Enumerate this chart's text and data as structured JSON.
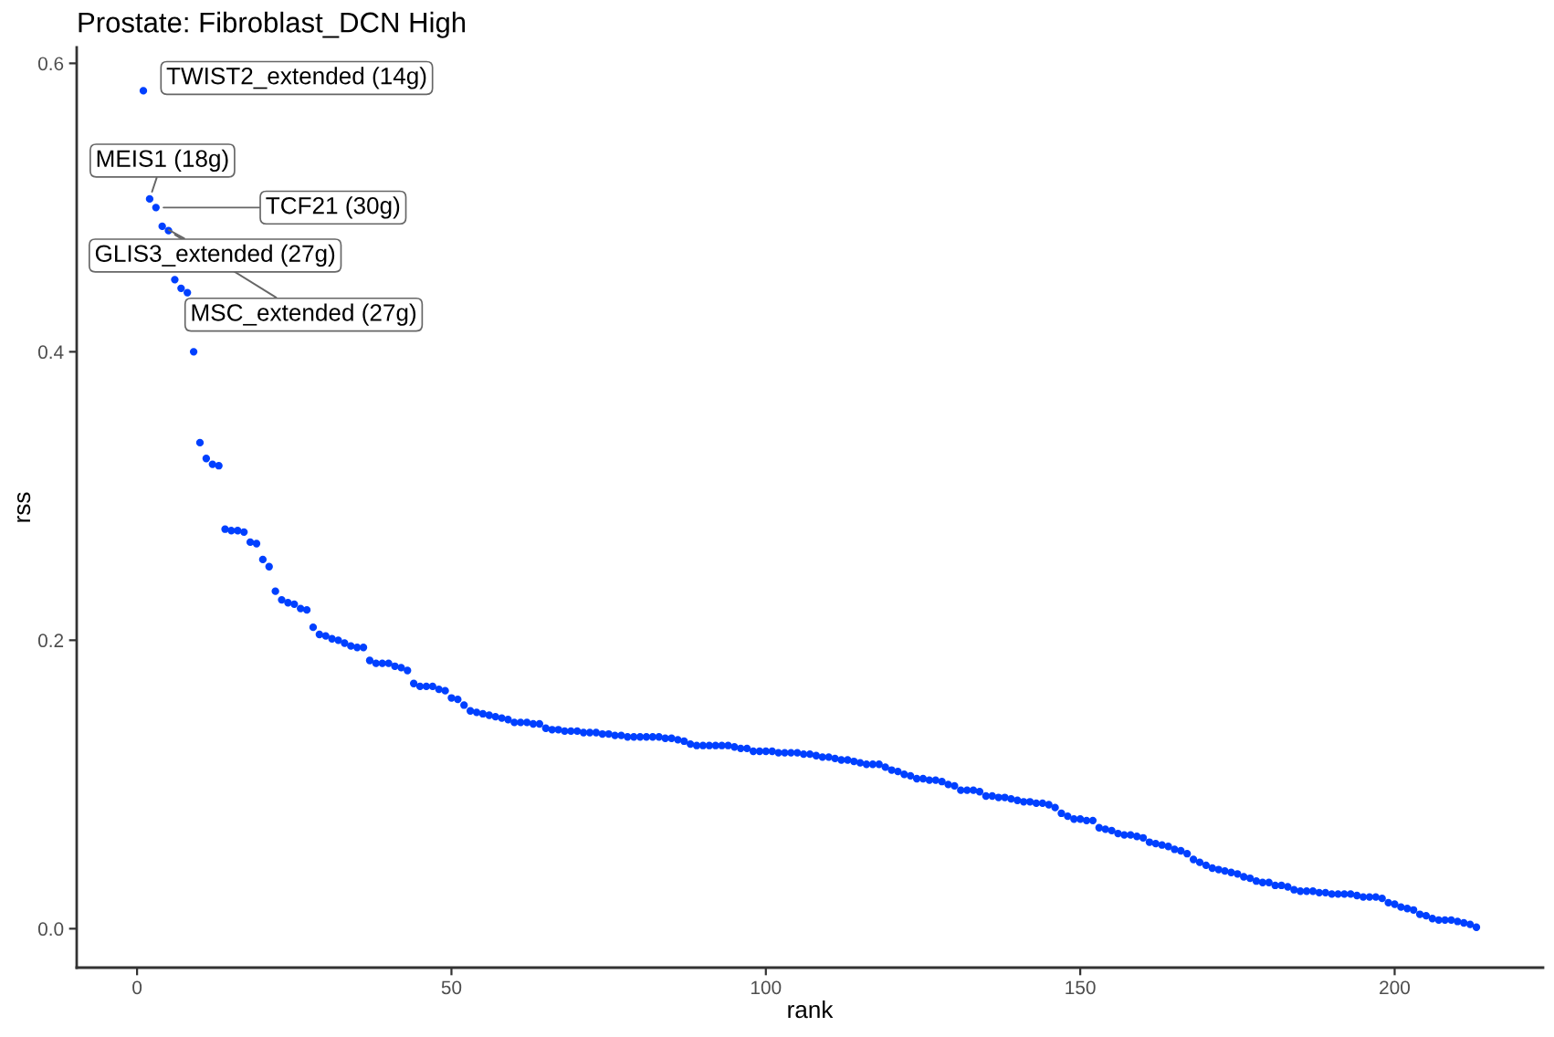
{
  "chart_data": {
    "type": "scatter",
    "title": "Prostate: Fibroblast_DCN High",
    "xlabel": "rank",
    "ylabel": "rss",
    "x": [
      1,
      2,
      3,
      4,
      5,
      6,
      7,
      8,
      9,
      10,
      11,
      12,
      13,
      14,
      15,
      16,
      17,
      18,
      19,
      20,
      21,
      22,
      23,
      24,
      25,
      26,
      27,
      28,
      29,
      30,
      31,
      32,
      33,
      34,
      35,
      36,
      37,
      38,
      39,
      40,
      41,
      42,
      43,
      44,
      45,
      46,
      47,
      48,
      49,
      50,
      51,
      52,
      53,
      54,
      55,
      56,
      57,
      58,
      59,
      60,
      61,
      62,
      63,
      64,
      65,
      66,
      67,
      68,
      69,
      70,
      71,
      72,
      73,
      74,
      75,
      76,
      77,
      78,
      79,
      80,
      81,
      82,
      83,
      84,
      85,
      86,
      87,
      88,
      89,
      90,
      91,
      92,
      93,
      94,
      95,
      96,
      97,
      98,
      99,
      100,
      101,
      102,
      103,
      104,
      105,
      106,
      107,
      108,
      109,
      110,
      111,
      112,
      113,
      114,
      115,
      116,
      117,
      118,
      119,
      120,
      121,
      122,
      123,
      124,
      125,
      126,
      127,
      128,
      129,
      130,
      131,
      132,
      133,
      134,
      135,
      136,
      137,
      138,
      139,
      140,
      141,
      142,
      143,
      144,
      145,
      146,
      147,
      148,
      149,
      150,
      151,
      152,
      153,
      154,
      155,
      156,
      157,
      158,
      159,
      160,
      161,
      162,
      163,
      164,
      165,
      166,
      167,
      168,
      169,
      170,
      171,
      172,
      173,
      174,
      175,
      176,
      177,
      178,
      179,
      180,
      181,
      182,
      183,
      184,
      185,
      186,
      187,
      188,
      189,
      190,
      191,
      192,
      193,
      194,
      195,
      196,
      197,
      198,
      199,
      200,
      201,
      202,
      203,
      204,
      205,
      206,
      207,
      208,
      209,
      210,
      211,
      212,
      213
    ],
    "series": [
      {
        "color": "#0040ff",
        "values": [
          0.581,
          0.506,
          0.5,
          0.487,
          0.484,
          0.45,
          0.444,
          0.441,
          0.4,
          0.337,
          0.326,
          0.322,
          0.321,
          0.277,
          0.276,
          0.276,
          0.275,
          0.268,
          0.267,
          0.256,
          0.251,
          0.234,
          0.228,
          0.226,
          0.225,
          0.222,
          0.221,
          0.209,
          0.204,
          0.203,
          0.201,
          0.2,
          0.198,
          0.196,
          0.195,
          0.195,
          0.186,
          0.184,
          0.184,
          0.184,
          0.182,
          0.181,
          0.179,
          0.17,
          0.168,
          0.168,
          0.168,
          0.166,
          0.165,
          0.16,
          0.159,
          0.155,
          0.151,
          0.15,
          0.149,
          0.148,
          0.147,
          0.146,
          0.145,
          0.143,
          0.143,
          0.143,
          0.142,
          0.142,
          0.139,
          0.138,
          0.138,
          0.137,
          0.137,
          0.137,
          0.136,
          0.136,
          0.136,
          0.135,
          0.135,
          0.134,
          0.134,
          0.133,
          0.133,
          0.133,
          0.133,
          0.133,
          0.133,
          0.132,
          0.132,
          0.131,
          0.13,
          0.128,
          0.127,
          0.127,
          0.127,
          0.127,
          0.127,
          0.127,
          0.126,
          0.125,
          0.125,
          0.123,
          0.123,
          0.123,
          0.123,
          0.122,
          0.122,
          0.122,
          0.122,
          0.121,
          0.121,
          0.12,
          0.119,
          0.119,
          0.118,
          0.117,
          0.117,
          0.116,
          0.115,
          0.114,
          0.114,
          0.114,
          0.112,
          0.11,
          0.109,
          0.107,
          0.106,
          0.104,
          0.104,
          0.103,
          0.103,
          0.102,
          0.1,
          0.099,
          0.096,
          0.096,
          0.096,
          0.095,
          0.092,
          0.092,
          0.091,
          0.091,
          0.09,
          0.089,
          0.088,
          0.088,
          0.087,
          0.087,
          0.086,
          0.084,
          0.08,
          0.078,
          0.076,
          0.076,
          0.075,
          0.075,
          0.07,
          0.069,
          0.068,
          0.066,
          0.065,
          0.065,
          0.064,
          0.063,
          0.06,
          0.059,
          0.058,
          0.057,
          0.055,
          0.054,
          0.052,
          0.048,
          0.046,
          0.044,
          0.042,
          0.041,
          0.04,
          0.039,
          0.038,
          0.036,
          0.035,
          0.033,
          0.032,
          0.032,
          0.03,
          0.03,
          0.029,
          0.027,
          0.026,
          0.026,
          0.026,
          0.025,
          0.025,
          0.024,
          0.024,
          0.024,
          0.024,
          0.023,
          0.022,
          0.022,
          0.022,
          0.021,
          0.018,
          0.017,
          0.015,
          0.014,
          0.013,
          0.01,
          0.009,
          0.007,
          0.006,
          0.006,
          0.006,
          0.005,
          0.004,
          0.003,
          0.001
        ]
      }
    ],
    "xlim": [
      -9.6,
      223.6
    ],
    "ylim": [
      -0.027,
      0.611
    ],
    "xticks": [
      0,
      50,
      100,
      150,
      200
    ],
    "yticks": [
      {
        "value": 0.0,
        "label": "0.0"
      },
      {
        "value": 0.2,
        "label": "0.2"
      },
      {
        "value": 0.4,
        "label": "0.4"
      },
      {
        "value": 0.6,
        "label": "0.6"
      }
    ],
    "grid": false,
    "marker": "circle",
    "annotations": [
      {
        "text": "TWIST2_extended (14g)",
        "x": 1,
        "y": 0.581
      },
      {
        "text": "MEIS1 (18g)",
        "x": 2,
        "y": 0.506
      },
      {
        "text": "TCF21 (30g)",
        "x": 3,
        "y": 0.5
      },
      {
        "text": "GLIS3_extended (27g)",
        "x": 4,
        "y": 0.487
      },
      {
        "text": "MSC_extended (27g)",
        "x": 5,
        "y": 0.484
      }
    ]
  }
}
